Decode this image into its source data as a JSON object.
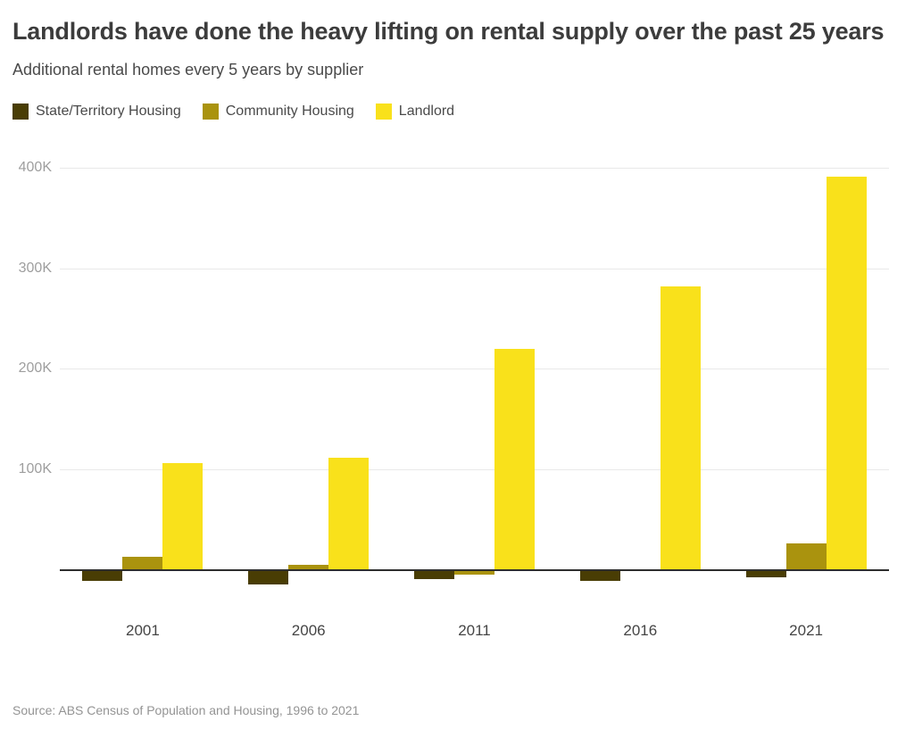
{
  "header": {
    "title": "Landlords have done the heavy lifting on rental supply over the past 25 years",
    "subtitle": "Additional rental homes every 5 years by supplier"
  },
  "source_note": "Source: ABS Census of Population and Housing, 1996 to 2021",
  "colors": {
    "state_territory": "#493d04",
    "community": "#aa930e",
    "landlord": "#f9e11b",
    "zero_line": "#2e2e2e",
    "gridline": "#e9e9e9",
    "axis_label": "#9e9e9e"
  },
  "chart_data": {
    "type": "bar",
    "title": "Landlords have done the heavy lifting on rental supply over the past 25 years",
    "subtitle": "Additional rental homes every 5 years by supplier",
    "categories": [
      "2001",
      "2006",
      "2011",
      "2016",
      "2021"
    ],
    "series": [
      {
        "name": "State/Territory Housing",
        "color": "#493d04",
        "values": [
          -11000,
          -14000,
          -9000,
          -11000,
          -7000
        ]
      },
      {
        "name": "Community Housing",
        "color": "#aa930e",
        "values": [
          13000,
          5000,
          -4000,
          0,
          27000
        ]
      },
      {
        "name": "Landlord",
        "color": "#f9e11b",
        "values": [
          106000,
          112000,
          220000,
          282000,
          391000
        ]
      }
    ],
    "y_ticks": [
      {
        "value": 100000,
        "label": "100K"
      },
      {
        "value": 200000,
        "label": "200K"
      },
      {
        "value": 300000,
        "label": "300K"
      },
      {
        "value": 400000,
        "label": "400K"
      }
    ],
    "ylim": [
      -20000,
      420000
    ],
    "xlabel": "",
    "ylabel": "",
    "grid": "horizontal",
    "legend_position": "top"
  }
}
